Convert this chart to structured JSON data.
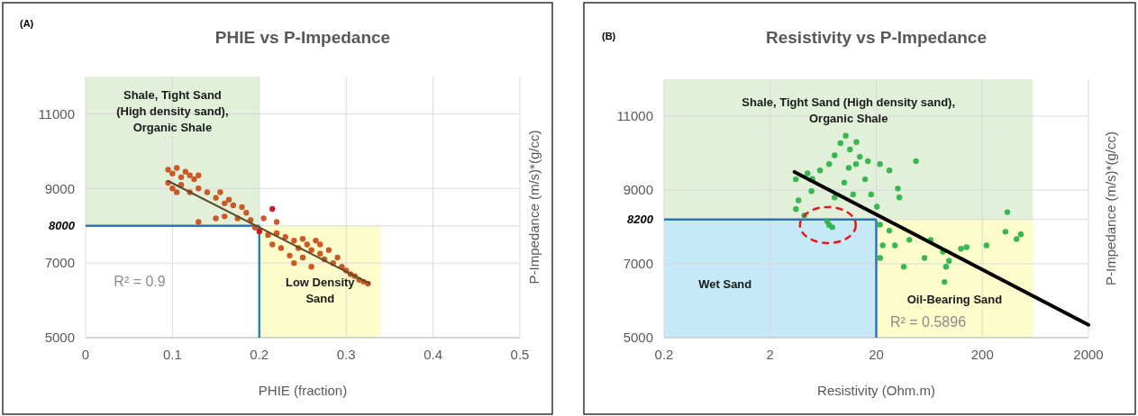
{
  "chart_data": [
    {
      "type": "scatter",
      "title": "PHIE vs P-Impedance",
      "xlabel": "PHIE (fraction)",
      "ylabel": "P-Impedance (m/s)*(g/cc)",
      "xlim": [
        0,
        0.5
      ],
      "xticks": [
        0,
        0.1,
        0.2,
        0.3,
        0.4,
        0.5
      ],
      "ylim": [
        5000,
        12000
      ],
      "yticks": [
        5000,
        7000,
        8000,
        9000,
        11000
      ],
      "grid": true,
      "marker": "circle",
      "series": [
        {
          "color": "#c8501e",
          "x": [
            0.095,
            0.1,
            0.105,
            0.11,
            0.115,
            0.12,
            0.125,
            0.13,
            0.095,
            0.1,
            0.105,
            0.11,
            0.12,
            0.13,
            0.14,
            0.15,
            0.155,
            0.16,
            0.165,
            0.17,
            0.18,
            0.185,
            0.13,
            0.15,
            0.16,
            0.175,
            0.19,
            0.195,
            0.205,
            0.22,
            0.21,
            0.215,
            0.22,
            0.225,
            0.23,
            0.235,
            0.24,
            0.245,
            0.25,
            0.25,
            0.255,
            0.26,
            0.265,
            0.27,
            0.275,
            0.28,
            0.285,
            0.29,
            0.295,
            0.3,
            0.305,
            0.31,
            0.315,
            0.32,
            0.325,
            0.24,
            0.26,
            0.27
          ],
          "values": [
            9500,
            9400,
            9550,
            9300,
            9450,
            9350,
            9250,
            9350,
            9150,
            9000,
            8900,
            9100,
            8900,
            9000,
            8900,
            8750,
            8900,
            8600,
            8700,
            8550,
            8500,
            8350,
            8100,
            8200,
            8250,
            8200,
            8150,
            7950,
            8200,
            8100,
            7750,
            7500,
            7800,
            7400,
            7700,
            7200,
            7600,
            7400,
            7650,
            7150,
            7500,
            7350,
            7600,
            7250,
            7100,
            7350,
            7000,
            7150,
            6900,
            6800,
            6700,
            6650,
            6550,
            6500,
            6450,
            7000,
            6900,
            7500
          ]
        },
        {
          "color": "#d0101e",
          "x": [
            0.215,
            0.2
          ],
          "values": [
            8450,
            7850
          ]
        },
        {
          "type": "line",
          "marker": "none",
          "color": "#5a4a2a",
          "x": [
            0.095,
            0.327
          ],
          "values": [
            9200,
            6450
          ]
        }
      ],
      "bands": [
        {
          "axis": "x",
          "from": 0,
          "to": 0.2,
          "color": "#e2efd9",
          "label": "Shale, Tight Sand (High density sand), Organic Shale"
        },
        {
          "axis": "x",
          "from": 0.2,
          "to": 0.34,
          "color": "#fdfccb",
          "label": "Low Density Sand"
        }
      ],
      "ref_lines": [
        {
          "axis": "y",
          "value": 8000,
          "color": "#2e75b6"
        },
        {
          "axis": "x",
          "value": 0.2,
          "color": "#2e86a6"
        }
      ],
      "annotations": [
        "(A)",
        "R² = 0.9"
      ]
    },
    {
      "type": "scatter",
      "title": "Resistivity vs P-Impedance",
      "xlabel": "Resistivity (Ohm.m)",
      "ylabel": "P-Impedance (m/s)*(g/cc)",
      "log": "x",
      "xlim": [
        0.2,
        2000
      ],
      "xticks": [
        0.2,
        2,
        20,
        200,
        2000
      ],
      "ylim": [
        5000,
        12000
      ],
      "yticks": [
        5000,
        7000,
        8200,
        9000,
        11000
      ],
      "grid": true,
      "marker": "circle",
      "series": [
        {
          "color": "#2cb34a",
          "x": [
            10.3,
            3.49,
            4.2,
            7.2,
            47.4,
            344,
            330,
            461,
            420,
            219,
            142,
            126,
            21.7,
            88,
            91,
            36.4,
            57,
            30,
            41,
            26.6,
            65,
            85,
            97,
            21.7,
            23,
            5.9,
            8.1,
            9.2,
            11.3,
            12.9,
            15.7,
            12.1,
            8.1,
            4.9,
            3.7,
            17.9,
            20.3,
            26.6,
            32,
            33,
            21.7,
            16.7,
            7.2,
            4.5,
            3.5,
            6.9,
            7.7,
            10,
            14,
            5,
            11,
            13
          ],
          "values": [
            10470,
            9290,
            8310,
            8050,
            9780,
            8400,
            7870,
            7800,
            7670,
            7500,
            7450,
            7410,
            8060,
            6510,
            6920,
            6920,
            7160,
            7500,
            7650,
            7900,
            7650,
            7330,
            7080,
            7160,
            7500,
            9530,
            9940,
            10270,
            10100,
            9700,
            9290,
            8880,
            8800,
            8970,
            8720,
            8880,
            8550,
            9530,
            9040,
            8800,
            9700,
            9780,
            9700,
            9450,
            8480,
            8150,
            7990,
            9200,
            9900,
            9300,
            9600,
            10300
          ]
        },
        {
          "type": "line",
          "marker": "none",
          "color": "#000000",
          "x": [
            3.39,
            2000
          ],
          "values": [
            9490,
            5350
          ]
        }
      ],
      "bands": [
        {
          "axis": "x",
          "from": 0.2,
          "to": 600,
          "color": "#e2efd9",
          "label": "Shale, Tight Sand (High density sand), Organic Shale"
        },
        {
          "axis": "x",
          "from": 0.2,
          "to": 20,
          "color": "#c5e9f7",
          "label": "Wet Sand"
        },
        {
          "axis": "x",
          "from": 20,
          "to": 600,
          "color": "#fdfccb",
          "label": "Oil-Bearing Sand"
        }
      ],
      "ref_lines": [
        {
          "axis": "y",
          "value": 8200,
          "color": "#2e75b6"
        },
        {
          "axis": "x",
          "value": 20,
          "color": "#2e75b6"
        }
      ],
      "annotations": [
        "(B)",
        "R² = 0.5896"
      ]
    }
  ]
}
